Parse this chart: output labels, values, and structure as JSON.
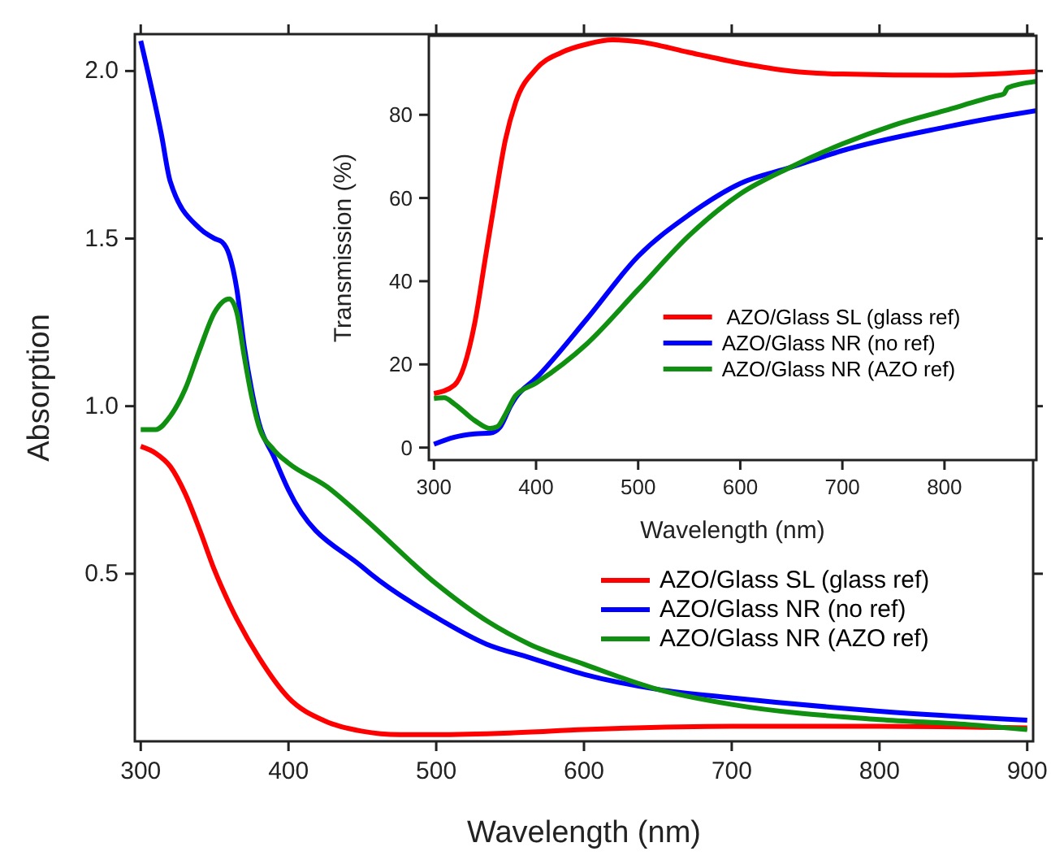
{
  "chart_data": [
    {
      "type": "line",
      "xlabel": "Wavelength (nm)",
      "ylabel": "Absorption",
      "xlim": [
        296,
        904
      ],
      "ylim": [
        0,
        2.11
      ],
      "xticks": [
        300,
        400,
        500,
        600,
        700,
        800,
        900
      ],
      "yticks": [
        {
          "value": 0.5,
          "label": "0.5"
        },
        {
          "value": 1,
          "label": "1.0"
        },
        {
          "value": 1.5,
          "label": "1.5"
        },
        {
          "value": 2,
          "label": "2.0"
        }
      ],
      "legend": "bottom right",
      "grid": false,
      "series": [
        {
          "name": "AZO/Glass SL (glass ref)",
          "color": "#ff0000",
          "x": [
            300,
            310,
            320,
            330,
            340,
            350,
            360,
            380,
            400,
            425,
            450,
            475,
            500,
            550,
            600,
            700,
            800,
            900
          ],
          "values": [
            0.88,
            0.86,
            0.82,
            0.74,
            0.63,
            0.51,
            0.41,
            0.25,
            0.13,
            0.06,
            0.03,
            0.02,
            0.02,
            0.025,
            0.035,
            0.045,
            0.045,
            0.04
          ]
        },
        {
          "name": "AZO/Glass NR (no ref)",
          "color": "#0000ff",
          "x": [
            300,
            314,
            320,
            340,
            350,
            355,
            360,
            365,
            370,
            375,
            380,
            390,
            400,
            450,
            500,
            534,
            563,
            600,
            650,
            700,
            800,
            900
          ],
          "values": [
            2.09,
            1.81,
            1.67,
            1.53,
            1.5,
            1.49,
            1.45,
            1.35,
            1.18,
            1.05,
            0.95,
            0.85,
            0.75,
            0.52,
            0.37,
            0.29,
            0.25,
            0.2,
            0.155,
            0.13,
            0.09,
            0.063
          ]
        },
        {
          "name": "AZO/Glass NR (AZO ref)",
          "color": "#109010",
          "x": [
            300,
            310,
            320,
            330,
            340,
            350,
            360,
            365,
            370,
            375,
            380,
            390,
            400,
            426,
            450,
            500,
            534,
            563,
            600,
            650,
            700,
            800,
            860,
            900
          ],
          "values": [
            0.93,
            0.93,
            0.97,
            1.05,
            1.17,
            1.28,
            1.32,
            1.28,
            1.15,
            1.03,
            0.94,
            0.87,
            0.83,
            0.76,
            0.67,
            0.47,
            0.36,
            0.29,
            0.23,
            0.155,
            0.11,
            0.065,
            0.05,
            0.035
          ]
        }
      ]
    },
    {
      "type": "line",
      "xlabel": "Wavelength (nm)",
      "ylabel": "Transmission (%)",
      "xlim": [
        295,
        890
      ],
      "ylim": [
        -3,
        99
      ],
      "xticks": [
        300,
        400,
        500,
        600,
        700,
        800
      ],
      "yticks": [
        0,
        20,
        40,
        60,
        80
      ],
      "legend": "bottom right",
      "grid": false,
      "series": [
        {
          "name": " AZO/Glass SL (glass ref)",
          "color": "#ff0000",
          "x": [
            300,
            320,
            340,
            350,
            360,
            370,
            380,
            400,
            425,
            450,
            475,
            500,
            550,
            600,
            650,
            700,
            800,
            890
          ],
          "values": [
            13,
            15,
            30,
            45,
            60,
            74,
            83,
            91,
            95,
            97,
            98,
            97.6,
            95,
            92.4,
            90.5,
            89.8,
            89.5,
            90.4
          ]
        },
        {
          "name": "AZO/Glass NR (no ref)",
          "color": "#0000ff",
          "x": [
            300,
            320,
            340,
            355,
            365,
            375,
            380,
            400,
            450,
            500,
            550,
            600,
            650,
            700,
            800,
            860,
            890
          ],
          "values": [
            0.8,
            2.5,
            3.3,
            3.5,
            5,
            10,
            12,
            16.7,
            31,
            46,
            56,
            63.5,
            67.4,
            71.4,
            77,
            79.8,
            81
          ]
        },
        {
          "name": "AZO/Glass NR (AZO ref)",
          "color": "#109010",
          "x": [
            300,
            310,
            320,
            340,
            355,
            362,
            370,
            380,
            400,
            450,
            500,
            550,
            600,
            650,
            700,
            750,
            800,
            850,
            858,
            862,
            890
          ],
          "values": [
            11.8,
            12,
            10.5,
            6.5,
            4.6,
            5,
            8,
            12.5,
            15.5,
            25,
            38,
            51,
            61,
            67.5,
            73,
            77.5,
            81,
            84.5,
            85,
            86.5,
            88
          ]
        }
      ]
    }
  ]
}
